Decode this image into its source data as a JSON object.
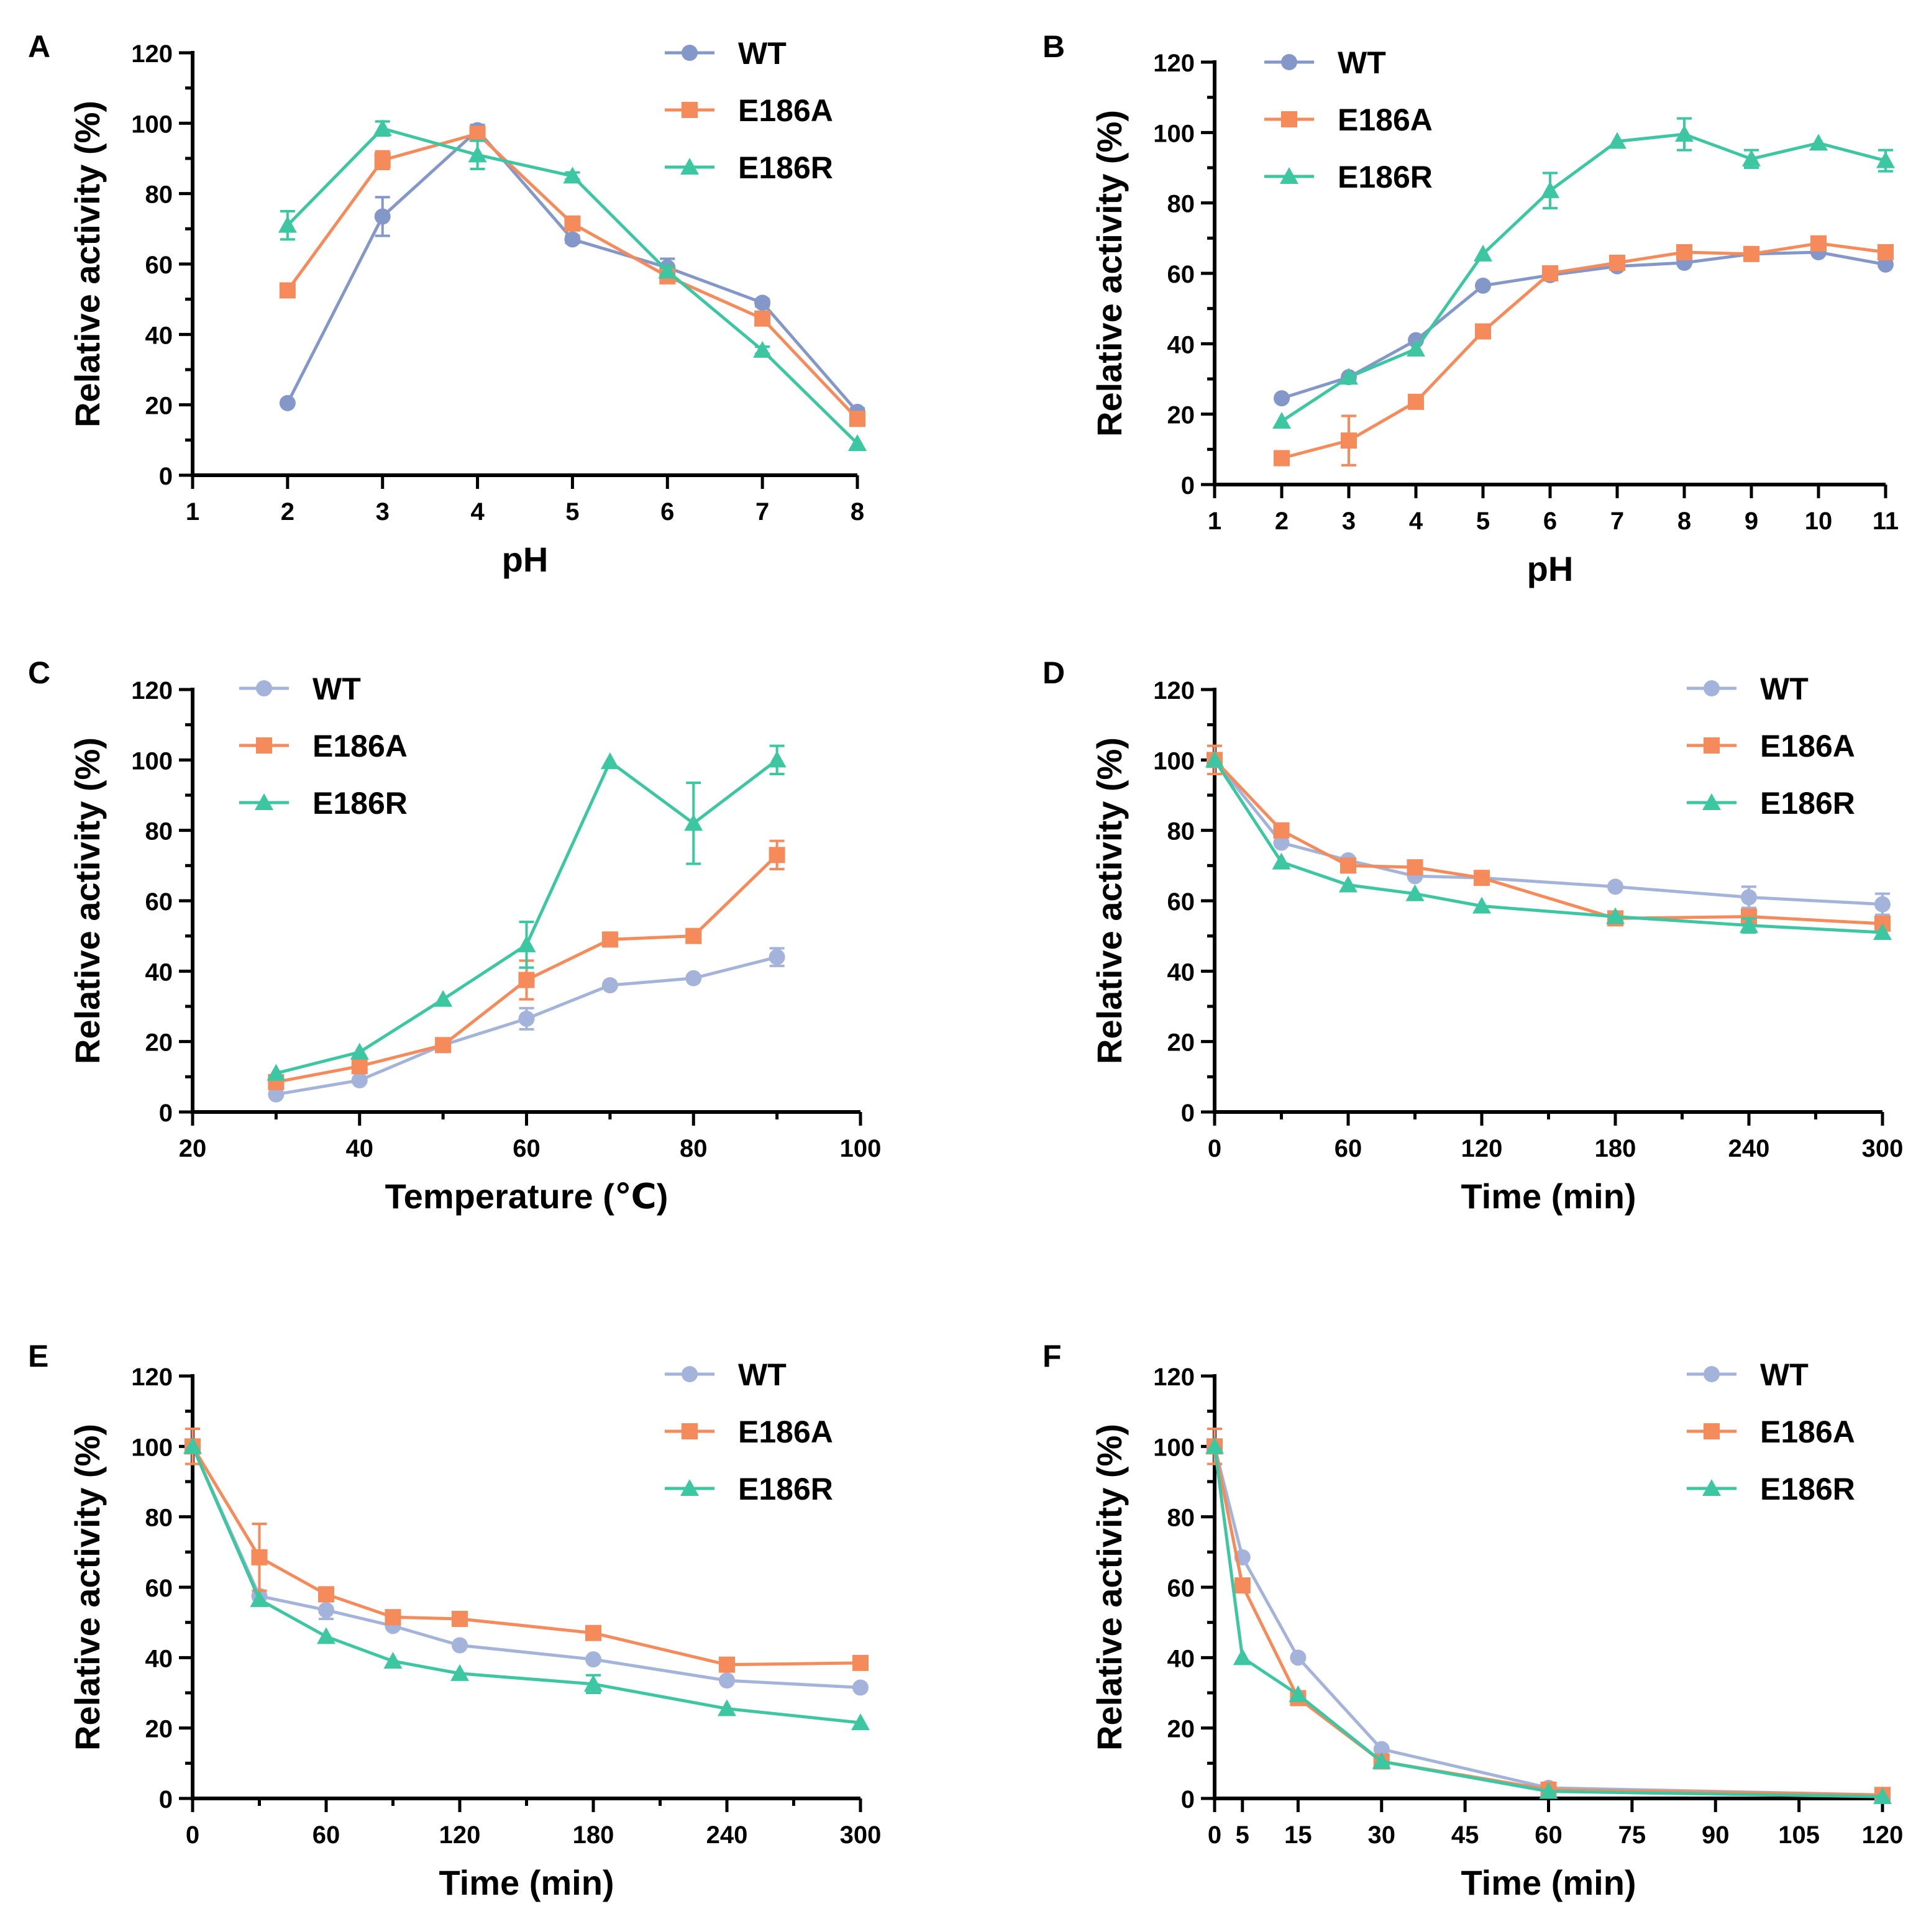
{
  "colors": {
    "WT": "#8497c9",
    "E186A": "#f58a5a",
    "E186R": "#3cc6a2",
    "WT_light": "#a3b3da",
    "axis": "#000000"
  },
  "chart_data": [
    {
      "panel": "A",
      "type": "line",
      "xlabel": "pH",
      "ylabel": "Relative activity (%)",
      "xlim": [
        1,
        8
      ],
      "ylim": [
        0,
        120
      ],
      "xticks": [
        "1",
        "2",
        "3",
        "4",
        "5",
        "6",
        "7",
        "8"
      ],
      "yticks": [
        "0",
        "20",
        "40",
        "60",
        "80",
        "100",
        "120"
      ],
      "legend": "top-right",
      "series": [
        {
          "name": "WT",
          "marker": "circle",
          "x": [
            2,
            3,
            4,
            5,
            6,
            7,
            8
          ],
          "y": [
            20.5,
            73.5,
            98,
            67,
            59,
            49,
            18
          ],
          "err": [
            0,
            5.5,
            1.5,
            1,
            2.5,
            1,
            1
          ]
        },
        {
          "name": "E186A",
          "marker": "square",
          "x": [
            2,
            3,
            4,
            5,
            6,
            7,
            8
          ],
          "y": [
            52.5,
            89.5,
            97,
            71.5,
            56.5,
            44.5,
            16
          ],
          "err": [
            0,
            2.5,
            1,
            1,
            1,
            1,
            1
          ]
        },
        {
          "name": "E186R",
          "marker": "triangle",
          "x": [
            2,
            3,
            4,
            5,
            6,
            7,
            8
          ],
          "y": [
            71,
            98.5,
            91,
            85,
            58,
            35.5,
            9
          ],
          "err": [
            4,
            2,
            4,
            1,
            1,
            1,
            0
          ]
        }
      ]
    },
    {
      "panel": "B",
      "type": "line",
      "xlabel": "pH",
      "ylabel": "Relative activity (%)",
      "xlim": [
        1,
        11
      ],
      "ylim": [
        0,
        120
      ],
      "xticks": [
        "1",
        "2",
        "3",
        "4",
        "5",
        "6",
        "7",
        "8",
        "9",
        "10",
        "11"
      ],
      "yticks": [
        "0",
        "20",
        "40",
        "60",
        "80",
        "100",
        "120"
      ],
      "legend": "top-left",
      "series": [
        {
          "name": "WT",
          "marker": "circle",
          "x": [
            2,
            3,
            4,
            5,
            6,
            7,
            8,
            9,
            10,
            11
          ],
          "y": [
            24.5,
            30.5,
            41,
            56.5,
            59.5,
            62,
            63,
            65.5,
            66,
            62.5
          ],
          "err": [
            0,
            0,
            0,
            0,
            0,
            0,
            0,
            0,
            0,
            0
          ]
        },
        {
          "name": "E186A",
          "marker": "square",
          "x": [
            2,
            3,
            4,
            5,
            6,
            7,
            8,
            9,
            10,
            11
          ],
          "y": [
            7.5,
            12.5,
            23.5,
            43.5,
            60,
            63,
            66,
            65.5,
            68.5,
            66
          ],
          "err": [
            0,
            7,
            0,
            0,
            0,
            0,
            0,
            0,
            0,
            0
          ]
        },
        {
          "name": "E186R",
          "marker": "triangle",
          "x": [
            2,
            3,
            4,
            5,
            6,
            7,
            8,
            9,
            10,
            11
          ],
          "y": [
            18,
            30.5,
            38.5,
            65.5,
            83.5,
            97.5,
            99.5,
            92.5,
            97,
            92
          ],
          "err": [
            0,
            0,
            0,
            0,
            5,
            0,
            4.5,
            2.5,
            0,
            3
          ]
        }
      ]
    },
    {
      "panel": "C",
      "type": "line",
      "xlabel": "Temperature (℃)",
      "ylabel": "Relative activity (%)",
      "xlim": [
        20,
        100
      ],
      "ylim": [
        0,
        120
      ],
      "xticks": [
        "20",
        "40",
        "60",
        "80",
        "100"
      ],
      "yticks": [
        "0",
        "20",
        "40",
        "60",
        "80",
        "100",
        "120"
      ],
      "legend": "top-left",
      "series": [
        {
          "name": "WT",
          "marker": "circle",
          "light": true,
          "x": [
            30,
            40,
            50,
            60,
            70,
            80,
            90
          ],
          "y": [
            5,
            9,
            19,
            26.5,
            36,
            38,
            44
          ],
          "err": [
            0,
            0,
            0,
            3,
            0,
            0,
            2.5
          ]
        },
        {
          "name": "E186A",
          "marker": "square",
          "x": [
            30,
            40,
            50,
            60,
            70,
            80,
            90
          ],
          "y": [
            8.5,
            13,
            19,
            37.5,
            49,
            50,
            73
          ],
          "err": [
            0,
            0,
            0,
            5.5,
            0,
            0,
            4
          ]
        },
        {
          "name": "E186R",
          "marker": "triangle",
          "x": [
            30,
            40,
            50,
            60,
            70,
            80,
            90
          ],
          "y": [
            11,
            17,
            32,
            47.5,
            99.5,
            82,
            100
          ],
          "err": [
            0,
            0,
            0,
            6.5,
            0,
            11.5,
            4
          ]
        }
      ]
    },
    {
      "panel": "D",
      "type": "line",
      "xlabel": "Time (min)",
      "ylabel": "Relative activity (%)",
      "xlim": [
        0,
        300
      ],
      "ylim": [
        0,
        120
      ],
      "xticks": [
        "0",
        "60",
        "120",
        "180",
        "240",
        "300"
      ],
      "yticks": [
        "0",
        "20",
        "40",
        "60",
        "80",
        "100",
        "120"
      ],
      "legend": "top-right",
      "series": [
        {
          "name": "WT",
          "marker": "circle",
          "light": true,
          "x": [
            0,
            30,
            60,
            90,
            120,
            180,
            240,
            300
          ],
          "y": [
            100,
            76.5,
            71.5,
            67,
            66.5,
            64,
            61,
            59
          ],
          "err": [
            4,
            0,
            0,
            0,
            0,
            0,
            3,
            3
          ]
        },
        {
          "name": "E186A",
          "marker": "square",
          "x": [
            0,
            30,
            60,
            90,
            120,
            180,
            240,
            300
          ],
          "y": [
            100,
            80,
            70,
            69.5,
            66.5,
            55,
            55.5,
            53.5
          ],
          "err": [
            4,
            0,
            0,
            0,
            0,
            0,
            0,
            0
          ]
        },
        {
          "name": "E186R",
          "marker": "triangle",
          "x": [
            0,
            30,
            60,
            90,
            120,
            180,
            240,
            300
          ],
          "y": [
            100,
            71,
            64.5,
            62,
            58.5,
            55.5,
            53,
            51
          ],
          "err": [
            0,
            0,
            0,
            0,
            0,
            0,
            2,
            0
          ]
        }
      ]
    },
    {
      "panel": "E",
      "type": "line",
      "xlabel": "Time (min)",
      "ylabel": "Relative activity (%)",
      "xlim": [
        0,
        300
      ],
      "ylim": [
        0,
        120
      ],
      "xticks": [
        "0",
        "60",
        "120",
        "180",
        "240",
        "300"
      ],
      "yticks": [
        "0",
        "20",
        "40",
        "60",
        "80",
        "100",
        "120"
      ],
      "legend": "top-right",
      "series": [
        {
          "name": "WT",
          "marker": "circle",
          "light": true,
          "x": [
            0,
            30,
            60,
            90,
            120,
            180,
            240,
            300
          ],
          "y": [
            100,
            57.5,
            53.5,
            49,
            43.5,
            39.5,
            33.5,
            31.5
          ],
          "err": [
            0,
            0,
            2.5,
            0,
            0,
            0,
            0,
            0
          ]
        },
        {
          "name": "E186A",
          "marker": "square",
          "x": [
            0,
            30,
            60,
            90,
            120,
            180,
            240,
            300
          ],
          "y": [
            100,
            68.5,
            58,
            51.5,
            51,
            47,
            38,
            38.5
          ],
          "err": [
            5,
            9.5,
            0,
            0,
            0,
            0,
            0,
            0
          ]
        },
        {
          "name": "E186R",
          "marker": "triangle",
          "x": [
            0,
            30,
            60,
            90,
            120,
            180,
            240,
            300
          ],
          "y": [
            100,
            56.5,
            46,
            39,
            35.5,
            32.5,
            25.5,
            21.5
          ],
          "err": [
            0,
            0,
            0,
            0,
            0,
            2.5,
            0,
            0
          ]
        }
      ]
    },
    {
      "panel": "F",
      "type": "line",
      "xlabel": "Time (min)",
      "ylabel": "Relative activity (%)",
      "xlim": [
        0,
        120
      ],
      "ylim": [
        0,
        120
      ],
      "xticks": [
        "0",
        "5",
        "15",
        "30",
        "45",
        "60",
        "75",
        "90",
        "105",
        "120"
      ],
      "yticks": [
        "0",
        "20",
        "40",
        "60",
        "80",
        "100",
        "120"
      ],
      "legend": "top-right",
      "series": [
        {
          "name": "WT",
          "marker": "circle",
          "light": true,
          "x": [
            0,
            5,
            15,
            30,
            60,
            120
          ],
          "y": [
            100,
            68.5,
            40,
            14,
            3,
            1
          ],
          "err": [
            0,
            0,
            0,
            0,
            0,
            0
          ]
        },
        {
          "name": "E186A",
          "marker": "square",
          "x": [
            0,
            5,
            15,
            30,
            60,
            120
          ],
          "y": [
            100,
            60.5,
            28.5,
            10.5,
            2.5,
            1
          ],
          "err": [
            5,
            0,
            0,
            0,
            0,
            0
          ]
        },
        {
          "name": "E186R",
          "marker": "triangle",
          "x": [
            0,
            5,
            15,
            30,
            60,
            120
          ],
          "y": [
            100,
            40,
            29.5,
            10.5,
            2,
            0.5
          ],
          "err": [
            0,
            0,
            0,
            0,
            0,
            0
          ]
        }
      ]
    }
  ]
}
